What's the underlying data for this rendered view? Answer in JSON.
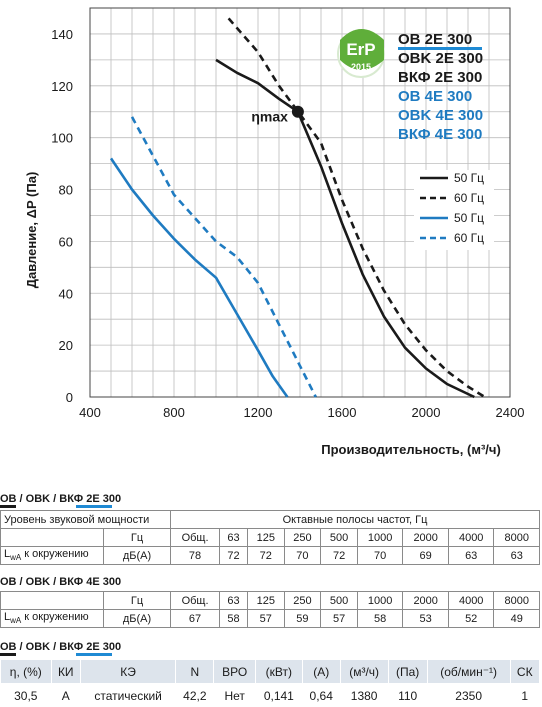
{
  "chart_data": {
    "type": "line",
    "xlabel": "Производительность, (м³/ч)",
    "ylabel": "Давление, ΔP (Па)",
    "xlim": [
      400,
      2400
    ],
    "ylim": [
      0,
      150
    ],
    "x_ticks": [
      "400",
      "800",
      "1200",
      "1600",
      "2000",
      "2400"
    ],
    "y_ticks": [
      "0",
      "20",
      "40",
      "60",
      "80",
      "100",
      "120",
      "140"
    ],
    "grid": true,
    "series": [
      {
        "name": "50 Гц",
        "color": "#1a1a1a",
        "style": "solid",
        "points": [
          [
            1000,
            130
          ],
          [
            1100,
            125
          ],
          [
            1200,
            121
          ],
          [
            1300,
            115
          ],
          [
            1390,
            110
          ],
          [
            1500,
            89
          ],
          [
            1600,
            67
          ],
          [
            1700,
            47
          ],
          [
            1800,
            31
          ],
          [
            1900,
            19
          ],
          [
            2000,
            11
          ],
          [
            2100,
            5
          ],
          [
            2230,
            0
          ]
        ]
      },
      {
        "name": "60 Гц",
        "color": "#1a1a1a",
        "style": "dashed",
        "points": [
          [
            1060,
            146
          ],
          [
            1200,
            133
          ],
          [
            1300,
            120
          ],
          [
            1400,
            109
          ],
          [
            1500,
            98
          ],
          [
            1600,
            76
          ],
          [
            1700,
            57
          ],
          [
            1800,
            41
          ],
          [
            1900,
            28
          ],
          [
            2000,
            18
          ],
          [
            2100,
            10
          ],
          [
            2200,
            4
          ],
          [
            2280,
            0
          ]
        ]
      },
      {
        "name": "50 Гц",
        "color": "#1f7bc1",
        "style": "solid",
        "points": [
          [
            500,
            92
          ],
          [
            600,
            80
          ],
          [
            700,
            70
          ],
          [
            800,
            61
          ],
          [
            900,
            53
          ],
          [
            1000,
            46
          ],
          [
            1100,
            32
          ],
          [
            1200,
            18
          ],
          [
            1270,
            8
          ],
          [
            1340,
            0
          ]
        ]
      },
      {
        "name": "60 Гц",
        "color": "#1f7bc1",
        "style": "dashed",
        "points": [
          [
            600,
            108
          ],
          [
            700,
            93
          ],
          [
            800,
            78
          ],
          [
            900,
            69
          ],
          [
            1000,
            60
          ],
          [
            1100,
            54
          ],
          [
            1200,
            44
          ],
          [
            1300,
            28
          ],
          [
            1400,
            12
          ],
          [
            1475,
            0
          ]
        ]
      }
    ],
    "annotation": {
      "label": "ηmax",
      "x": 1390,
      "y": 110
    },
    "models": [
      {
        "label": "OB 2E 300",
        "color": "#1a1a1a",
        "underline": true
      },
      {
        "label": "OBK 2E 300",
        "color": "#1a1a1a",
        "underline": false
      },
      {
        "label": "ВКФ 2E 300",
        "color": "#1a1a1a",
        "underline": false
      },
      {
        "label": "OB 4E 300",
        "color": "#1f7bc1",
        "underline": false
      },
      {
        "label": "OBK 4E 300",
        "color": "#1f7bc1",
        "underline": false
      },
      {
        "label": "ВКФ 4E 300",
        "color": "#1f7bc1",
        "underline": false
      }
    ],
    "badge": {
      "text": "ErP",
      "year": "2015",
      "color": "#5fae3a"
    }
  },
  "tables": {
    "t1": {
      "title": "OB / OBK / ВКФ 2E 300",
      "row1": {
        "label": "Уровень звуковой мощности",
        "octave": "Октавные полосы частот, Гц"
      },
      "row2": {
        "unit": "Гц",
        "cells": [
          "Общ.",
          "63",
          "125",
          "250",
          "500",
          "1000",
          "2000",
          "4000",
          "8000"
        ]
      },
      "row3": {
        "label_pre": "L",
        "label_sub": "wA",
        "label_post": " к окружению",
        "unit": "дБ(А)",
        "cells": [
          "78",
          "72",
          "72",
          "70",
          "72",
          "70",
          "69",
          "63",
          "63"
        ]
      }
    },
    "t2": {
      "title": "OB / OBK / ВКФ 4E 300",
      "row2": {
        "unit": "Гц",
        "cells": [
          "Общ.",
          "63",
          "125",
          "250",
          "500",
          "1000",
          "2000",
          "4000",
          "8000"
        ]
      },
      "row3": {
        "label_pre": "L",
        "label_sub": "wA",
        "label_post": " к окружению",
        "unit": "дБ(А)",
        "cells": [
          "67",
          "58",
          "57",
          "59",
          "57",
          "58",
          "53",
          "52",
          "49"
        ]
      }
    },
    "t3": {
      "title": "OB / OBK / ВКФ 2E 300",
      "headers": [
        "η, (%)",
        "КИ",
        "КЭ",
        "N",
        "ВРО",
        "(кВт)",
        "(А)",
        "(м³/ч)",
        "(Па)",
        "(об/мин⁻¹)",
        "СК"
      ],
      "values": [
        "30,5",
        "A",
        "статический",
        "42,2",
        "Нет",
        "0,141",
        "0,64",
        "1380",
        "110",
        "2350",
        "1"
      ]
    }
  }
}
